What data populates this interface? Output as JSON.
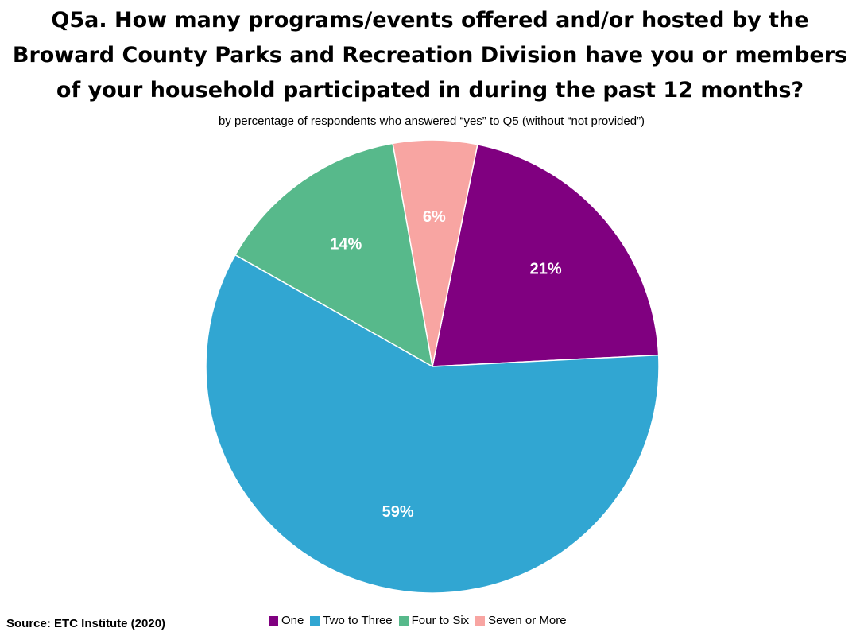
{
  "chart_data": {
    "type": "pie",
    "title_lines": [
      "Q5a. How many programs/events offered and/or hosted by the",
      "Broward County Parks and Recreation Division have you or members",
      "of your household participated in during the past 12 months?"
    ],
    "subtitle": "by percentage of respondents who answered “yes” to Q5 (without “not provided”)",
    "start_angle_deg": 11.5,
    "direction": "clockwise",
    "legend_position": "bottom",
    "categories": [
      "One",
      "Two to Three",
      "Four to Six",
      "Seven or More"
    ],
    "values": [
      21,
      59,
      14,
      6
    ],
    "labels": [
      "21%",
      "59%",
      "14%",
      "6%"
    ],
    "colors": [
      "#800080",
      "#31a6d2",
      "#57b98b",
      "#f8a5a2"
    ],
    "draw_order": [
      0,
      3,
      2,
      1
    ]
  },
  "source": "Source:  ETC Institute (2020)"
}
